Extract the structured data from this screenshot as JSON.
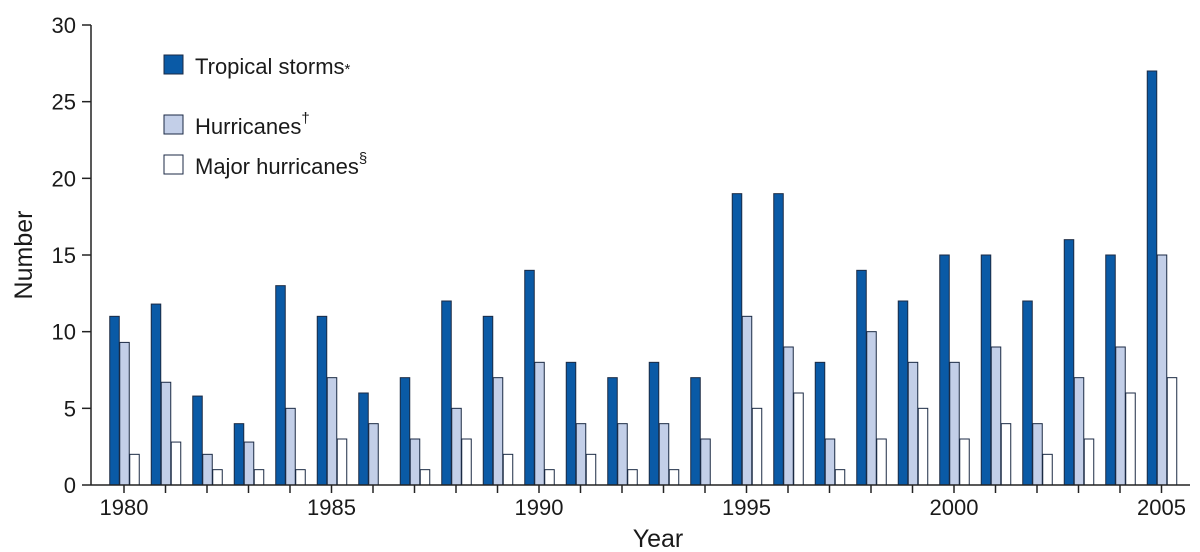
{
  "chart_data": {
    "type": "bar",
    "title": "",
    "xlabel": "Year",
    "ylabel": "Number",
    "ylim": [
      0,
      30
    ],
    "yticks": [
      0,
      5,
      10,
      15,
      20,
      25,
      30
    ],
    "xtick_labels": [
      "1980",
      "1985",
      "1990",
      "1995",
      "2000",
      "2005"
    ],
    "categories": [
      "1980",
      "1981",
      "1982",
      "1983",
      "1984",
      "1985",
      "1986",
      "1987",
      "1988",
      "1989",
      "1990",
      "1991",
      "1992",
      "1993",
      "1994",
      "1995",
      "1996",
      "1997",
      "1998",
      "1999",
      "2000",
      "2001",
      "2002",
      "2003",
      "2004",
      "2005"
    ],
    "series": [
      {
        "name": "Tropical storms",
        "superscript": "*",
        "color": "#0a5aa6",
        "values": [
          11,
          11.8,
          5.8,
          4,
          13,
          11,
          6,
          7,
          12,
          11,
          14,
          8,
          7,
          8,
          7,
          19,
          19,
          8,
          14,
          12,
          15,
          15,
          12,
          16,
          15,
          27
        ]
      },
      {
        "name": "Hurricanes",
        "superscript": "†",
        "color": "#c3cfe8",
        "values": [
          9.3,
          6.7,
          2,
          2.8,
          5,
          7,
          4,
          3,
          5,
          7,
          8,
          4,
          4,
          4,
          3,
          11,
          9,
          3,
          10,
          8,
          8,
          9,
          4,
          7,
          9,
          15
        ]
      },
      {
        "name": "Major hurricanes",
        "superscript": "§",
        "color": "#ffffff",
        "values": [
          2,
          2.8,
          1,
          1,
          1,
          3,
          0,
          1,
          3,
          2,
          1,
          2,
          1,
          1,
          0,
          5,
          6,
          1,
          3,
          5,
          3,
          4,
          2,
          3,
          6,
          7
        ]
      }
    ],
    "legend_position": "top-left",
    "grid": false
  }
}
